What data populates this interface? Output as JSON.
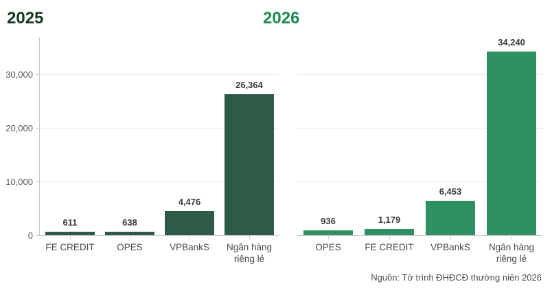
{
  "page": {
    "background": "#ffffff"
  },
  "chart_data": [
    {
      "type": "bar",
      "title": "2025",
      "title_color": "#14381f",
      "bar_color": "#2f5a48",
      "categories": [
        "FE CREDIT",
        "OPES",
        "VPBankS",
        "Ngân hàng riêng lẻ"
      ],
      "values": [
        611,
        638,
        4476,
        26364
      ],
      "value_labels": [
        "611",
        "638",
        "4,476",
        "26,364"
      ],
      "xlabel": "",
      "ylabel": "",
      "ylim": [
        0,
        37000
      ],
      "grid": true,
      "y_axis_visible": true,
      "y_ticks": [
        {
          "label": "0",
          "value": 0
        },
        {
          "label": "10,000",
          "value": 10000
        },
        {
          "label": "20,000",
          "value": 20000
        },
        {
          "label": "30,000",
          "value": 30000
        }
      ],
      "legend": "none"
    },
    {
      "type": "bar",
      "title": "2026",
      "title_color": "#1e8a4b",
      "bar_color": "#2f9161",
      "categories": [
        "OPES",
        "FE CREDIT",
        "VPBankS",
        "Ngân hàng riêng lẻ"
      ],
      "values": [
        936,
        1179,
        6453,
        34240
      ],
      "value_labels": [
        "936",
        "1,179",
        "6,453",
        "34,240"
      ],
      "xlabel": "",
      "ylabel": "",
      "ylim": [
        0,
        37000
      ],
      "grid": true,
      "y_axis_visible": false,
      "y_ticks": [
        {
          "label": "",
          "value": 0
        },
        {
          "label": "",
          "value": 10000
        },
        {
          "label": "",
          "value": 20000
        },
        {
          "label": "",
          "value": 30000
        }
      ],
      "legend": "none"
    }
  ],
  "source_note": "Nguồn: Tờ trình ĐHĐCĐ thường niên 2026",
  "colors": {
    "grid": "#e7e7e7",
    "axis": "#c9c9c9",
    "y_tick_label": "#585858",
    "category_label": "#4a4a4a",
    "value_label": "#3a3a3a",
    "source": "#4d4d4d",
    "background": "#ffffff"
  }
}
